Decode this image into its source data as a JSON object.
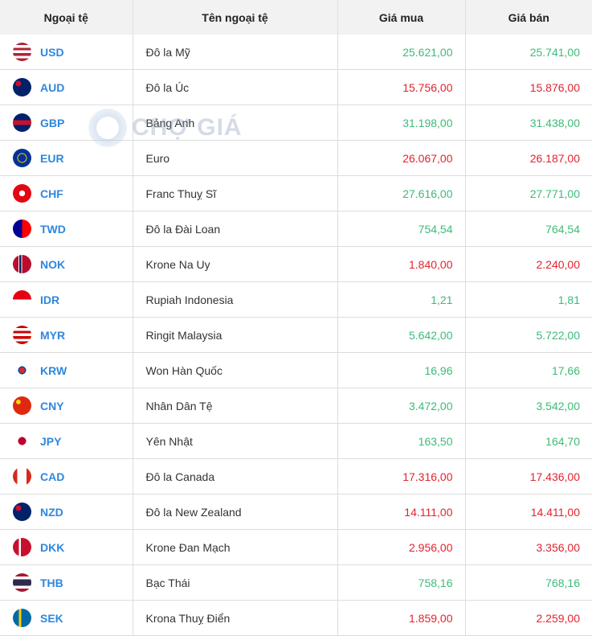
{
  "headers": [
    "Ngoại tệ",
    "Tên ngoại tệ",
    "Giá mua",
    "Giá bán"
  ],
  "watermark": "CHỢ GIÁ",
  "colors": {
    "up": "#3dba78",
    "down": "#e2232f",
    "code": "#2f87dd"
  },
  "rows": [
    {
      "code": "USD",
      "name": "Đô la Mỹ",
      "buy": "25.621,00",
      "sell": "25.741,00",
      "trend": "up",
      "flag": "linear-gradient(#b22234 0 14%,#fff 14% 28%,#b22234 28% 42%,#fff 42% 57%,#b22234 57% 71%,#fff 71% 85%,#b22234 85%)"
    },
    {
      "code": "AUD",
      "name": "Đô la Úc",
      "buy": "15.756,00",
      "sell": "15.876,00",
      "trend": "down",
      "flag": "radial-gradient(circle at 30% 30%,#c8102e 0 15%,#012169 16%)"
    },
    {
      "code": "GBP",
      "name": "Bảng Anh",
      "buy": "31.198,00",
      "sell": "31.438,00",
      "trend": "up",
      "flag": "linear-gradient(#012169 0 38%,#c8102e 38% 62%,#012169 62%)"
    },
    {
      "code": "EUR",
      "name": "Euro",
      "buy": "26.067,00",
      "sell": "26.187,00",
      "trend": "down",
      "flag": "radial-gradient(circle,#003399 0 30%,#ffcc00 31% 36%,#003399 37%)"
    },
    {
      "code": "CHF",
      "name": "Franc Thuỵ Sĩ",
      "buy": "27.616,00",
      "sell": "27.771,00",
      "trend": "up",
      "flag": "radial-gradient(circle,#fff 0 22%,#e30613 23%)"
    },
    {
      "code": "TWD",
      "name": "Đô la Đài Loan",
      "buy": "754,54",
      "sell": "764,54",
      "trend": "up",
      "flag": "linear-gradient(90deg,#000095 0 50%,#fe0000 50%)"
    },
    {
      "code": "NOK",
      "name": "Krone Na Uy",
      "buy": "1.840,00",
      "sell": "2.240,00",
      "trend": "down",
      "flag": "linear-gradient(90deg,#ba0c2f 0 30%,#fff 30% 34%,#00205b 34% 46%,#fff 46% 50%,#ba0c2f 50%)"
    },
    {
      "code": "IDR",
      "name": "Rupiah Indonesia",
      "buy": "1,21",
      "sell": "1,81",
      "trend": "up",
      "flag": "linear-gradient(#e70011 0 50%,#fff 50%)"
    },
    {
      "code": "MYR",
      "name": "Ringit Malaysia",
      "buy": "5.642,00",
      "sell": "5.722,00",
      "trend": "up",
      "flag": "linear-gradient(#cc0001 0 14%,#fff 14% 28%,#cc0001 28% 42%,#fff 42% 57%,#cc0001 57% 71%,#fff 71% 85%,#cc0001 85%)"
    },
    {
      "code": "KRW",
      "name": "Won Hàn Quốc",
      "buy": "16,96",
      "sell": "17,66",
      "trend": "up",
      "flag": "radial-gradient(circle,#cd2e3a 0 22%,#0047a0 23% 30%,#fff 31%)"
    },
    {
      "code": "CNY",
      "name": "Nhân Dân Tệ",
      "buy": "3.472,00",
      "sell": "3.542,00",
      "trend": "up",
      "flag": "radial-gradient(circle at 30% 30%,#ffde00 0 12%,#de2910 13%)"
    },
    {
      "code": "JPY",
      "name": "Yên Nhật",
      "buy": "163,50",
      "sell": "164,70",
      "trend": "up",
      "flag": "radial-gradient(circle,#bc002d 0 30%,#fff 31%)"
    },
    {
      "code": "CAD",
      "name": "Đô la Canada",
      "buy": "17.316,00",
      "sell": "17.436,00",
      "trend": "down",
      "flag": "linear-gradient(90deg,#d52b1e 0 25%,#fff 25% 75%,#d52b1e 75%)"
    },
    {
      "code": "NZD",
      "name": "Đô la New Zealand",
      "buy": "14.111,00",
      "sell": "14.411,00",
      "trend": "down",
      "flag": "radial-gradient(circle at 30% 30%,#c8102e 0 15%,#012169 16%)"
    },
    {
      "code": "DKK",
      "name": "Krone Đan Mạch",
      "buy": "2.956,00",
      "sell": "3.356,00",
      "trend": "down",
      "flag": "linear-gradient(90deg,#c8102e 0 32%,#fff 32% 44%,#c8102e 44%)"
    },
    {
      "code": "THB",
      "name": "Bạc Thái",
      "buy": "758,16",
      "sell": "768,16",
      "trend": "up",
      "flag": "linear-gradient(#a51931 0 17%,#fff 17% 33%,#2d2a4a 33% 67%,#fff 67% 83%,#a51931 83%)"
    },
    {
      "code": "SEK",
      "name": "Krona Thuỵ Điển",
      "buy": "1.859,00",
      "sell": "2.259,00",
      "trend": "down",
      "flag": "linear-gradient(90deg,#006aa7 0 32%,#fecc00 32% 46%,#006aa7 46%)"
    }
  ]
}
